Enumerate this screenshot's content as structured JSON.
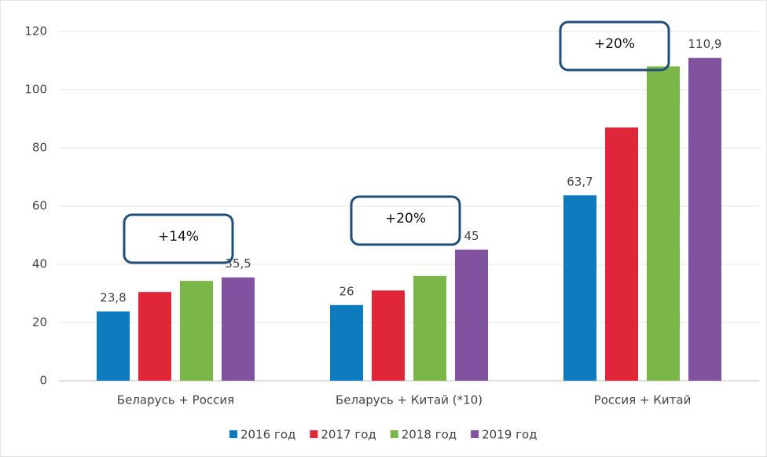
{
  "chart_data": {
    "type": "bar",
    "categories": [
      "Беларусь + Россия",
      "Беларусь + Китай (*10)",
      "Россия + Китай"
    ],
    "series": [
      {
        "name": "2016 год",
        "color": "#0f7bbf",
        "values": [
          23.8,
          26,
          63.7
        ],
        "value_labels": [
          "23,8",
          "26",
          "63,7"
        ]
      },
      {
        "name": "2017 год",
        "color": "#e0273a",
        "values": [
          30.5,
          31,
          87
        ]
      },
      {
        "name": "2018 год",
        "color": "#7ab648",
        "values": [
          34.3,
          36,
          108
        ]
      },
      {
        "name": "2019 год",
        "color": "#8152a0",
        "values": [
          35.5,
          45,
          110.9
        ],
        "value_labels": [
          "35,5",
          "45",
          "110,9"
        ]
      }
    ],
    "annotations": [
      "+14%",
      "+20%",
      "+20%"
    ],
    "ylim": [
      0,
      120
    ],
    "yticks": [
      0,
      20,
      40,
      60,
      80,
      100,
      120
    ],
    "grid": true,
    "legend": "bottom"
  }
}
